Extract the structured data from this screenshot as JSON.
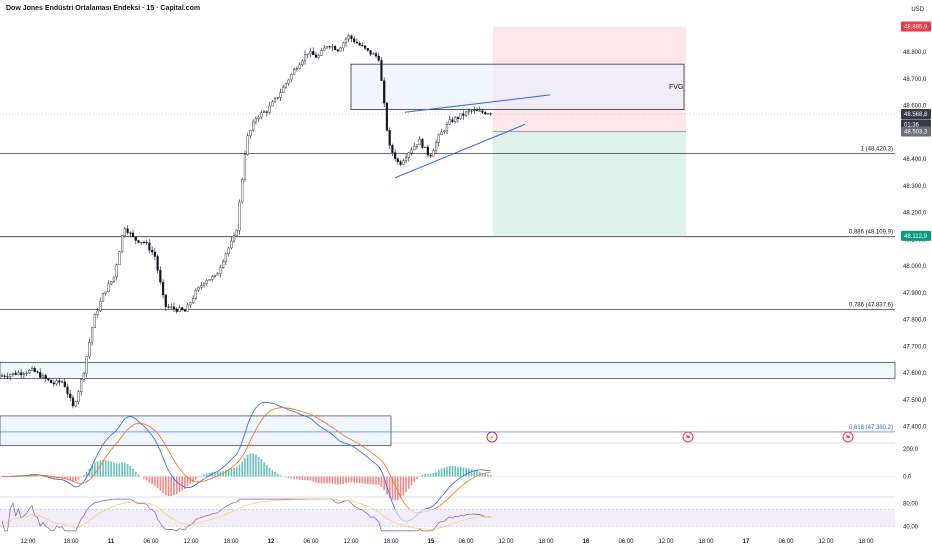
{
  "header": {
    "title": "Dow Jones Endüstri Ortalaması Endeksi · 15 · Capital.com",
    "currency": "USD"
  },
  "colors": {
    "up": "#26a69a",
    "down": "#ef5350",
    "candle": "#131722",
    "trendline": "#2962ff",
    "fvg_fill": "#e8eefc",
    "stop_fill": "#fbe0e3",
    "target_fill": "#d6efe6",
    "red_badge": "#f23645",
    "green_badge": "#089981",
    "macd_line": "#2962ff",
    "signal_line": "#ff6d00",
    "rsi_line": "#7e57c2",
    "rsi_band": "#ede7f6"
  },
  "chart_data": [
    {
      "type": "candlestick",
      "ylim": [
        47350,
        48920
      ],
      "y_ticks": [
        "48.800,0",
        "48.700,0",
        "48.600,0",
        "48.500,0",
        "48.400,0",
        "48.300,0",
        "48.200,0",
        "48.100,0",
        "48.000,0",
        "47.900,0",
        "47.800,0",
        "47.700,0",
        "47.600,0",
        "47.500,0",
        "47.400,0"
      ],
      "y_tick_values": [
        48800,
        48700,
        48600,
        48500,
        48400,
        48300,
        48200,
        48100,
        48000,
        47900,
        47800,
        47700,
        47600,
        47500,
        47400
      ],
      "x_tick_labels": [
        "12:00",
        "18:00",
        "11",
        "06:00",
        "12:00",
        "18:00",
        "12",
        "06:00",
        "12:00",
        "18:00",
        "15",
        "06:00",
        "12:00",
        "18:00",
        "16",
        "06:00",
        "12:00",
        "18:00",
        "17",
        "06:00",
        "12:00",
        "18:00"
      ],
      "price_path": [
        [
          0,
          47590
        ],
        [
          3,
          47610
        ],
        [
          5,
          47560
        ],
        [
          6,
          47570
        ],
        [
          7,
          47470
        ],
        [
          8,
          47600
        ],
        [
          9,
          47800
        ],
        [
          10,
          47900
        ],
        [
          11,
          47960
        ],
        [
          12,
          48150
        ],
        [
          13,
          48100
        ],
        [
          14,
          48090
        ],
        [
          15,
          48040
        ],
        [
          16,
          47850
        ],
        [
          17,
          47840
        ],
        [
          18,
          47830
        ],
        [
          19,
          47900
        ],
        [
          20,
          47950
        ],
        [
          21,
          47960
        ],
        [
          22,
          48050
        ],
        [
          23,
          48120
        ],
        [
          24,
          48470
        ],
        [
          25,
          48560
        ],
        [
          26,
          48580
        ],
        [
          27,
          48630
        ],
        [
          28,
          48690
        ],
        [
          29,
          48750
        ],
        [
          30,
          48800
        ],
        [
          31,
          48780
        ],
        [
          32,
          48830
        ],
        [
          33,
          48810
        ],
        [
          34,
          48860
        ],
        [
          35,
          48830
        ],
        [
          36,
          48800
        ],
        [
          37,
          48780
        ],
        [
          38,
          48450
        ],
        [
          39,
          48380
        ],
        [
          40,
          48430
        ],
        [
          41,
          48470
        ],
        [
          42,
          48410
        ],
        [
          43,
          48490
        ],
        [
          44,
          48540
        ],
        [
          45,
          48560
        ],
        [
          46,
          48580
        ],
        [
          47,
          48575
        ],
        [
          48,
          48575
        ]
      ],
      "total_bars": 180,
      "levels": [
        {
          "label": "1 (48.420,3)",
          "value": 48420.3
        },
        {
          "label": "0,886 (48.109,9)",
          "value": 48109.9
        },
        {
          "label": "0,786 (47.837,6)",
          "value": 47837.6
        },
        {
          "label": "0,618 (47.380,2)",
          "value": 47380.2
        }
      ],
      "fvg_label": "FVG",
      "fvg_zone": [
        48585,
        48755
      ],
      "demand_zones": [
        [
          47580,
          47640
        ],
        [
          47330,
          47440
        ]
      ],
      "position": {
        "stop": 48895.9,
        "entry": 48503.3,
        "target": 48112.9
      },
      "price_badges": [
        {
          "text": "48.895,9",
          "value": 48895.9,
          "kind": "red"
        },
        {
          "text": "48.568,8",
          "value": 48568.8,
          "kind": "dark"
        },
        {
          "text": "01:36",
          "value": 48530,
          "kind": "dark"
        },
        {
          "text": "48.503,3",
          "value": 48503.3,
          "kind": "gray"
        },
        {
          "text": "48.112,9",
          "value": 48112.9,
          "kind": "green"
        }
      ],
      "event_markers": [
        "⚡",
        "⚑",
        "⚑"
      ]
    },
    {
      "type": "macd",
      "y_ticks": [
        "200,0",
        "0,0"
      ],
      "y_tick_values": [
        200,
        0
      ],
      "ylim": [
        -140,
        220
      ]
    },
    {
      "type": "rsi",
      "y_ticks": [
        "80,00",
        "40,00"
      ],
      "y_tick_values": [
        80,
        40
      ],
      "ylim": [
        30,
        90
      ],
      "band": [
        40,
        70
      ]
    }
  ]
}
